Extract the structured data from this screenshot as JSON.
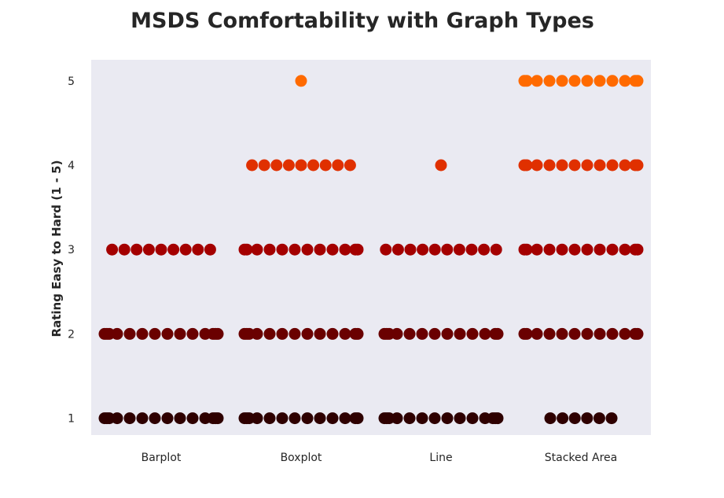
{
  "chart_data": {
    "type": "scatter",
    "subtype": "swarm",
    "title": "MSDS Comfortability with Graph Types",
    "xlabel": "",
    "ylabel": "Rating Easy to Hard (1 - 5)",
    "categories": [
      "Barplot",
      "Boxplot",
      "Line",
      "Stacked Area"
    ],
    "yticks": [
      "1",
      "2",
      "3",
      "4",
      "5"
    ],
    "ylim": [
      0.8,
      5.25
    ],
    "grid": false,
    "background_color": "#EAEAF2",
    "rating_colors": {
      "1": "#2E0000",
      "2": "#6A0000",
      "3": "#A40000",
      "4": "#E03000",
      "5": "#FF6A00"
    },
    "counts": {
      "Barplot": {
        "1": 14,
        "2": 14,
        "3": 9,
        "4": 0,
        "5": 0
      },
      "Boxplot": {
        "1": 13,
        "2": 13,
        "3": 12,
        "4": 9,
        "5": 1
      },
      "Line": {
        "1": 14,
        "2": 13,
        "3": 10,
        "4": 1,
        "5": 0
      },
      "Stacked Area": {
        "1": 6,
        "2": 12,
        "3": 12,
        "4": 12,
        "5": 12
      }
    }
  }
}
